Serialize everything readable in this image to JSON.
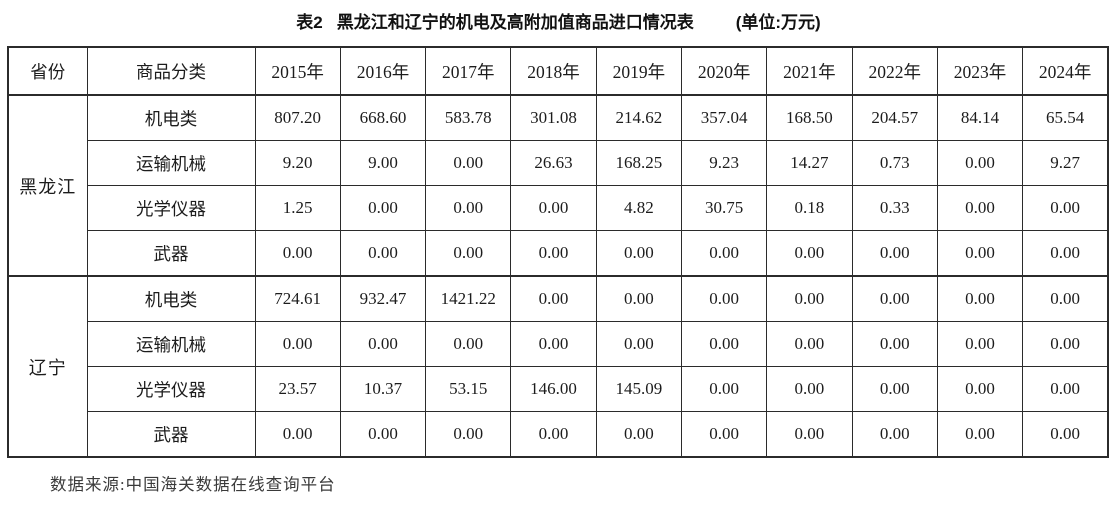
{
  "title": {
    "prefix": "表2",
    "main": "黑龙江和辽宁的机电及高附加值商品进口情况表",
    "unit": "(单位:万元)"
  },
  "table": {
    "col_headers": [
      "省份",
      "商品分类",
      "2015年",
      "2016年",
      "2017年",
      "2018年",
      "2019年",
      "2020年",
      "2021年",
      "2022年",
      "2023年",
      "2024年"
    ],
    "provinces": [
      {
        "name": "黑龙江",
        "rows": [
          {
            "category": "机电类",
            "values": [
              "807.20",
              "668.60",
              "583.78",
              "301.08",
              "214.62",
              "357.04",
              "168.50",
              "204.57",
              "84.14",
              "65.54"
            ]
          },
          {
            "category": "运输机械",
            "values": [
              "9.20",
              "9.00",
              "0.00",
              "26.63",
              "168.25",
              "9.23",
              "14.27",
              "0.73",
              "0.00",
              "9.27"
            ]
          },
          {
            "category": "光学仪器",
            "values": [
              "1.25",
              "0.00",
              "0.00",
              "0.00",
              "4.82",
              "30.75",
              "0.18",
              "0.33",
              "0.00",
              "0.00"
            ]
          },
          {
            "category": "武器",
            "values": [
              "0.00",
              "0.00",
              "0.00",
              "0.00",
              "0.00",
              "0.00",
              "0.00",
              "0.00",
              "0.00",
              "0.00"
            ]
          }
        ]
      },
      {
        "name": "辽宁",
        "rows": [
          {
            "category": "机电类",
            "values": [
              "724.61",
              "932.47",
              "1421.22",
              "0.00",
              "0.00",
              "0.00",
              "0.00",
              "0.00",
              "0.00",
              "0.00"
            ]
          },
          {
            "category": "运输机械",
            "values": [
              "0.00",
              "0.00",
              "0.00",
              "0.00",
              "0.00",
              "0.00",
              "0.00",
              "0.00",
              "0.00",
              "0.00"
            ]
          },
          {
            "category": "光学仪器",
            "values": [
              "23.57",
              "10.37",
              "53.15",
              "146.00",
              "145.09",
              "0.00",
              "0.00",
              "0.00",
              "0.00",
              "0.00"
            ]
          },
          {
            "category": "武器",
            "values": [
              "0.00",
              "0.00",
              "0.00",
              "0.00",
              "0.00",
              "0.00",
              "0.00",
              "0.00",
              "0.00",
              "0.00"
            ]
          }
        ]
      }
    ]
  },
  "source_note": "数据来源:中国海关数据在线查询平台"
}
